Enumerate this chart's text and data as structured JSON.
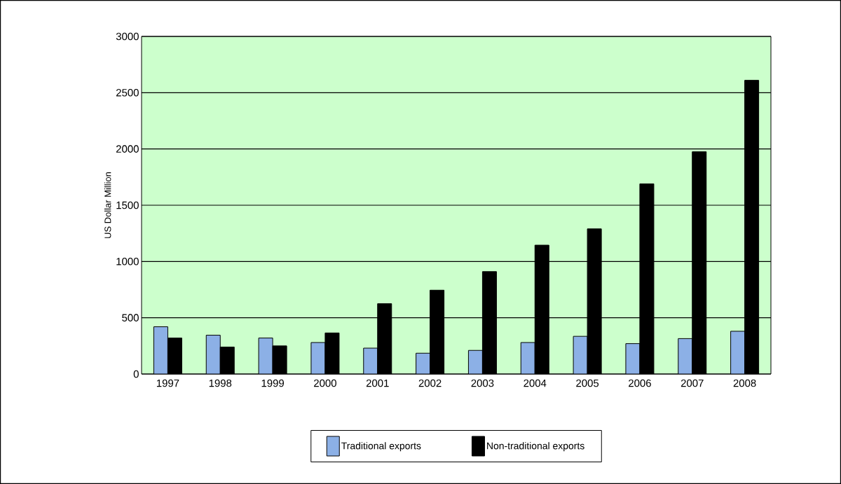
{
  "chart_data": {
    "type": "bar",
    "ylabel": "US Dollar Million",
    "categories": [
      "1997",
      "1998",
      "1999",
      "2000",
      "2001",
      "2002",
      "2003",
      "2004",
      "2005",
      "2006",
      "2007",
      "2008"
    ],
    "series": [
      {
        "name": "Traditional exports",
        "color": "#8cb0e6",
        "values": [
          420,
          345,
          320,
          280,
          230,
          185,
          210,
          280,
          335,
          270,
          315,
          380
        ]
      },
      {
        "name": "Non-traditional exports",
        "color": "#000000",
        "values": [
          320,
          240,
          250,
          365,
          625,
          745,
          910,
          1145,
          1290,
          1690,
          1975,
          2610
        ]
      }
    ],
    "ylim": [
      0,
      3000
    ],
    "yticks": [
      0,
      500,
      1000,
      1500,
      2000,
      2500,
      3000
    ],
    "grid": "y",
    "legend": "bottom"
  }
}
